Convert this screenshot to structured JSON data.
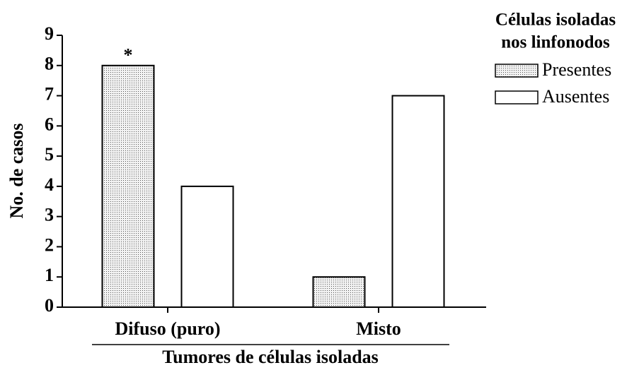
{
  "chart_data": {
    "type": "bar",
    "ylabel": "No. de casos",
    "xlabel": "Tumores de células isoladas",
    "legend_title": [
      "Células isoladas",
      "nos linfonodos"
    ],
    "annotation": "*",
    "categories": [
      "Difuso (puro)",
      "Misto"
    ],
    "series": [
      {
        "name": "Presentes",
        "color": "#e6e6e6",
        "pattern": "dots",
        "values": [
          8,
          1
        ]
      },
      {
        "name": "Ausentes",
        "color": "#ffffff",
        "values": [
          4,
          7
        ]
      }
    ],
    "ylim": [
      0,
      9
    ],
    "yticks": [
      0,
      1,
      2,
      3,
      4,
      5,
      6,
      7,
      8,
      9
    ],
    "legend": "upper right"
  }
}
